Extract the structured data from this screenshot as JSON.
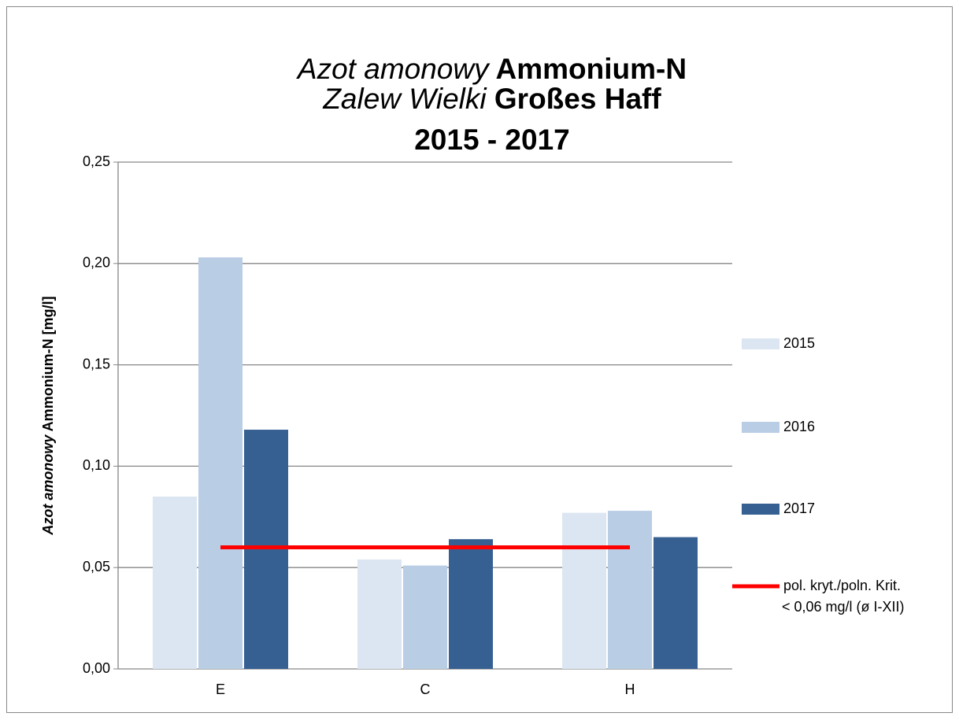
{
  "chart_data": {
    "type": "bar",
    "title": [
      [
        "Azot amonowy",
        "Ammonium-N"
      ],
      [
        "Zalew Wielki",
        "Großes Haff"
      ],
      [
        "2015 - 2017"
      ]
    ],
    "ylabel": [
      "Azot amonowy",
      "Ammonium-N [mg/l]"
    ],
    "categories": [
      "E",
      "C",
      "H"
    ],
    "series": [
      {
        "name": "2015",
        "color": "#dce6f2",
        "values": [
          0.085,
          0.054,
          0.077
        ]
      },
      {
        "name": "2016",
        "color": "#b9cde5",
        "values": [
          0.203,
          0.051,
          0.078
        ]
      },
      {
        "name": "2017",
        "color": "#376092",
        "values": [
          0.118,
          0.064,
          0.065
        ]
      },
      {
        "name": [
          "pol. kryt./poln. Krit.",
          "< 0,06 mg/l (ø I-XII)"
        ],
        "color": "#ff0000",
        "type": "line",
        "values": [
          0.06,
          0.06,
          0.06
        ]
      }
    ],
    "ylim": [
      0,
      0.25
    ],
    "yticks": [
      {
        "value": 0,
        "label": "0,00"
      },
      {
        "value": 0.05,
        "label": "0,05"
      },
      {
        "value": 0.1,
        "label": "0,10"
      },
      {
        "value": 0.15,
        "label": "0,15"
      },
      {
        "value": 0.2,
        "label": "0,20"
      },
      {
        "value": 0.25,
        "label": "0,25"
      }
    ],
    "grid": true,
    "legend": "right"
  }
}
